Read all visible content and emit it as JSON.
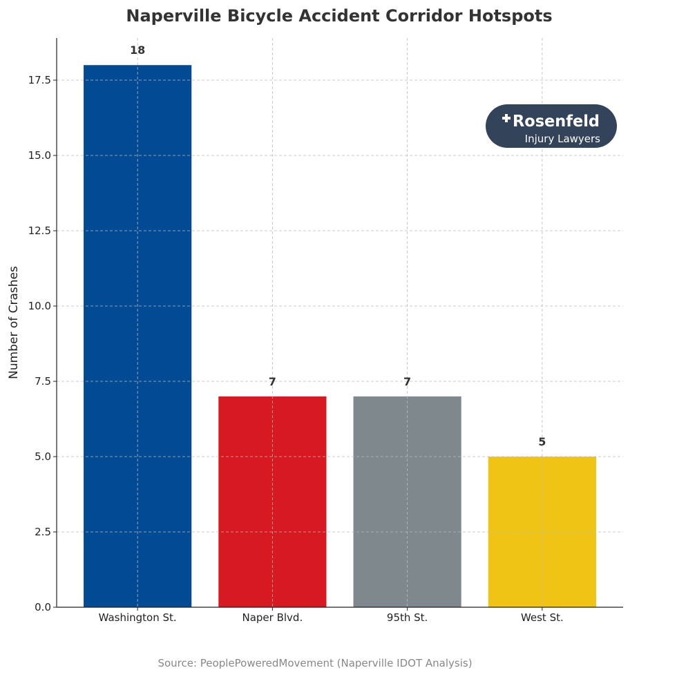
{
  "chart_data": {
    "type": "bar",
    "title": "Naperville Bicycle Accident Corridor Hotspots",
    "xlabel": "",
    "ylabel": "Number of Crashes",
    "categories": [
      "Washington St.",
      "Naper Blvd.",
      "95th St.",
      "West St."
    ],
    "values": [
      18,
      7,
      7,
      5
    ],
    "data_labels": [
      "18",
      "7",
      "7",
      "5"
    ],
    "colors": [
      "#034a94",
      "#d71a21",
      "#7e888d",
      "#efc415"
    ],
    "ylim": [
      0,
      18.9
    ],
    "yticks": [
      0,
      2.5,
      5,
      7.5,
      10,
      12.5,
      15,
      17.5
    ],
    "ytick_labels": [
      "0.0",
      "2.5",
      "5.0",
      "7.5",
      "10.0",
      "12.5",
      "15.0",
      "17.5"
    ],
    "grid": true,
    "source": "Source: PeoplePoweredMovement (Naperville IDOT Analysis)"
  },
  "logo": {
    "line1": "Rosenfeld",
    "line2": "Injury Lawyers",
    "bg": "#33435a"
  }
}
